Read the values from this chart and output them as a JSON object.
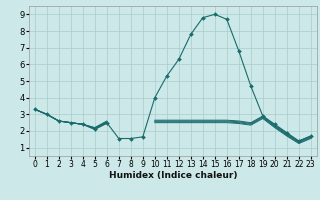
{
  "title": "",
  "xlabel": "Humidex (Indice chaleur)",
  "xlim": [
    -0.5,
    23.5
  ],
  "ylim": [
    0.5,
    9.5
  ],
  "xticks": [
    0,
    1,
    2,
    3,
    4,
    5,
    6,
    7,
    8,
    9,
    10,
    11,
    12,
    13,
    14,
    15,
    16,
    17,
    18,
    19,
    20,
    21,
    22,
    23
  ],
  "yticks": [
    1,
    2,
    3,
    4,
    5,
    6,
    7,
    8,
    9
  ],
  "bg_color": "#cce8e8",
  "grid_color": "#aacccc",
  "line_color": "#1a6b6b",
  "lines": [
    {
      "x": [
        0,
        1,
        2,
        3,
        4,
        5,
        6,
        7,
        8,
        9,
        10,
        11,
        12,
        13,
        14,
        15,
        16,
        17,
        18,
        19,
        20,
        21,
        22,
        23
      ],
      "y": [
        3.3,
        3.0,
        2.6,
        2.5,
        2.4,
        2.1,
        2.5,
        1.55,
        1.55,
        1.65,
        4.0,
        5.3,
        6.3,
        7.8,
        8.8,
        9.0,
        8.7,
        6.8,
        4.7,
        2.9,
        2.4,
        1.9,
        1.4,
        1.7
      ],
      "marker": true
    },
    {
      "x": [
        0,
        1,
        2,
        3,
        4,
        5,
        6,
        7,
        8,
        9,
        10,
        11,
        12,
        13,
        14,
        15,
        16,
        17,
        18,
        19,
        20,
        21,
        22,
        23
      ],
      "y": [
        3.3,
        3.0,
        2.6,
        2.5,
        2.4,
        2.2,
        2.6,
        null,
        null,
        null,
        2.65,
        2.65,
        2.65,
        2.65,
        2.65,
        2.65,
        2.65,
        2.6,
        2.5,
        2.9,
        2.35,
        1.85,
        1.4,
        1.7
      ],
      "marker": false
    },
    {
      "x": [
        0,
        1,
        2,
        3,
        4,
        5,
        6,
        7,
        8,
        9,
        10,
        11,
        12,
        13,
        14,
        15,
        16,
        17,
        18,
        19,
        20,
        21,
        22,
        23
      ],
      "y": [
        3.3,
        3.0,
        2.6,
        2.5,
        2.4,
        2.2,
        2.55,
        null,
        null,
        null,
        2.6,
        2.6,
        2.6,
        2.6,
        2.6,
        2.6,
        2.6,
        2.55,
        2.45,
        2.85,
        2.3,
        1.8,
        1.35,
        1.65
      ],
      "marker": false
    },
    {
      "x": [
        0,
        1,
        2,
        3,
        4,
        5,
        6,
        7,
        8,
        9,
        10,
        11,
        12,
        13,
        14,
        15,
        16,
        17,
        18,
        19,
        20,
        21,
        22,
        23
      ],
      "y": [
        3.3,
        3.0,
        2.6,
        2.5,
        2.4,
        2.15,
        2.5,
        null,
        null,
        null,
        2.55,
        2.55,
        2.55,
        2.55,
        2.55,
        2.55,
        2.55,
        2.5,
        2.4,
        2.8,
        2.25,
        1.75,
        1.3,
        1.6
      ],
      "marker": false
    },
    {
      "x": [
        0,
        1,
        2,
        3,
        4,
        5,
        6,
        7,
        8,
        9,
        10,
        11,
        12,
        13,
        14,
        15,
        16,
        17,
        18,
        19,
        20,
        21,
        22,
        23
      ],
      "y": [
        3.3,
        3.0,
        2.6,
        2.5,
        2.4,
        2.1,
        2.45,
        null,
        null,
        null,
        2.5,
        2.5,
        2.5,
        2.5,
        2.5,
        2.5,
        2.5,
        2.45,
        2.35,
        2.75,
        2.2,
        1.7,
        1.25,
        1.55
      ],
      "marker": false
    }
  ]
}
